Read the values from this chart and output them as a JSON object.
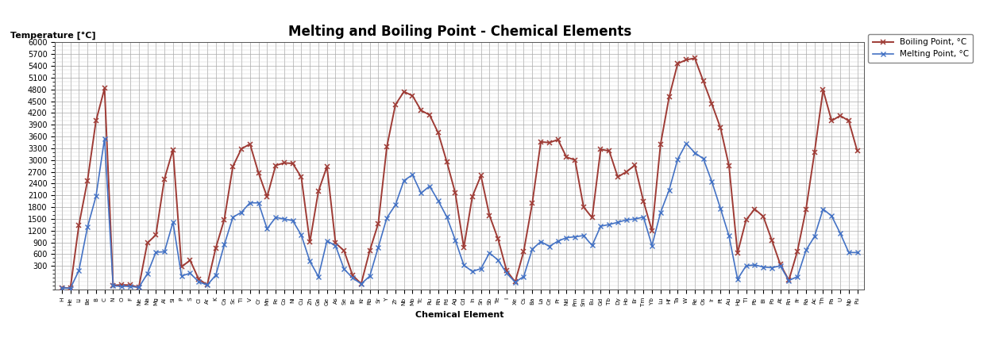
{
  "title": "Melting and Boiling Point - Chemical Elements",
  "xlabel": "Chemical Element",
  "ylabel": "Temperature [°C]",
  "legend_melting": "Melting Point, °C",
  "legend_boiling": "Boiling Point, °C",
  "ylim_min": -300,
  "ylim_max": 6000,
  "yticks": [
    300,
    600,
    900,
    1200,
    1500,
    1800,
    2100,
    2400,
    2700,
    3000,
    3300,
    3600,
    3900,
    4200,
    4500,
    4800,
    5100,
    5400,
    5700,
    6000
  ],
  "melting_color": "#4472C4",
  "boiling_color": "#9E3B35",
  "elements": [
    "H",
    "He",
    "Li",
    "Be",
    "B",
    "C",
    "N",
    "O",
    "F",
    "Ne",
    "Na",
    "Mg",
    "Al",
    "Si",
    "P",
    "S",
    "Cl",
    "Ar",
    "K",
    "Ca",
    "Sc",
    "Ti",
    "V",
    "Cr",
    "Mn",
    "Fe",
    "Co",
    "Ni",
    "Cu",
    "Zn",
    "Ga",
    "Ge",
    "As",
    "Se",
    "Br",
    "Kr",
    "Rb",
    "Sr",
    "Y",
    "Zr",
    "Nb",
    "Mo",
    "Tc",
    "Ru",
    "Rh",
    "Pd",
    "Ag",
    "Cd",
    "In",
    "Sn",
    "Sb",
    "Te",
    "I",
    "Xe",
    "Cs",
    "Ba",
    "La",
    "Ce",
    "Pr",
    "Nd",
    "Pm",
    "Sm",
    "Eu",
    "Gd",
    "Tb",
    "Dy",
    "Ho",
    "Er",
    "Tm",
    "Yb",
    "Lu",
    "Hf",
    "Ta",
    "W",
    "Re",
    "Os",
    "Ir",
    "Pt",
    "Au",
    "Hg",
    "Tl",
    "Pb",
    "Bi",
    "Po",
    "At",
    "Rn",
    "Fr",
    "Ra",
    "Ac",
    "Th",
    "Pa",
    "U",
    "Np",
    "Pu"
  ],
  "melting": [
    -259,
    -272,
    181,
    1287,
    2076,
    3550,
    -210,
    -218,
    -220,
    -249,
    98,
    650,
    660,
    1414,
    44,
    113,
    -101,
    -189,
    64,
    842,
    1541,
    1668,
    1910,
    1907,
    1246,
    1538,
    1495,
    1455,
    1085,
    420,
    30,
    938,
    817,
    221,
    -7,
    -157,
    39,
    777,
    1526,
    1855,
    2477,
    2623,
    2157,
    2334,
    1964,
    1555,
    962,
    321,
    157,
    232,
    631,
    450,
    114,
    -112,
    28,
    727,
    920,
    799,
    931,
    1021,
    1042,
    1074,
    822,
    1313,
    1356,
    1412,
    1474,
    1497,
    1545,
    819,
    1663,
    2233,
    3017,
    3422,
    3186,
    3033,
    2446,
    1768,
    1064,
    -39,
    304,
    327,
    271,
    254,
    302,
    -71,
    27,
    700,
    1051,
    1750,
    1572,
    1135,
    644,
    640
  ],
  "boiling": [
    -253,
    -269,
    1342,
    2469,
    4000,
    4827,
    -196,
    -183,
    -188,
    -246,
    883,
    1090,
    2519,
    3265,
    277,
    445,
    -34,
    -186,
    759,
    1484,
    2836,
    3287,
    3407,
    2671,
    2061,
    2861,
    2927,
    2913,
    2562,
    907,
    2204,
    2833,
    887,
    685,
    59,
    -153,
    688,
    1382,
    3336,
    4409,
    4744,
    4639,
    4265,
    4150,
    3695,
    2963,
    2162,
    767,
    2072,
    2602,
    1587,
    988,
    184,
    -108,
    671,
    1897,
    3464,
    3443,
    3520,
    3074,
    3000,
    1803,
    1529,
    3273,
    3230,
    2567,
    2700,
    2868,
    1950,
    1194,
    3402,
    4603,
    5458,
    5555,
    5596,
    5012,
    4428,
    3825,
    2856,
    630,
    1473,
    1749,
    1564,
    962,
    337,
    -62,
    677,
    1737,
    3198,
    4788,
    4000,
    4131,
    4000,
    3228
  ]
}
